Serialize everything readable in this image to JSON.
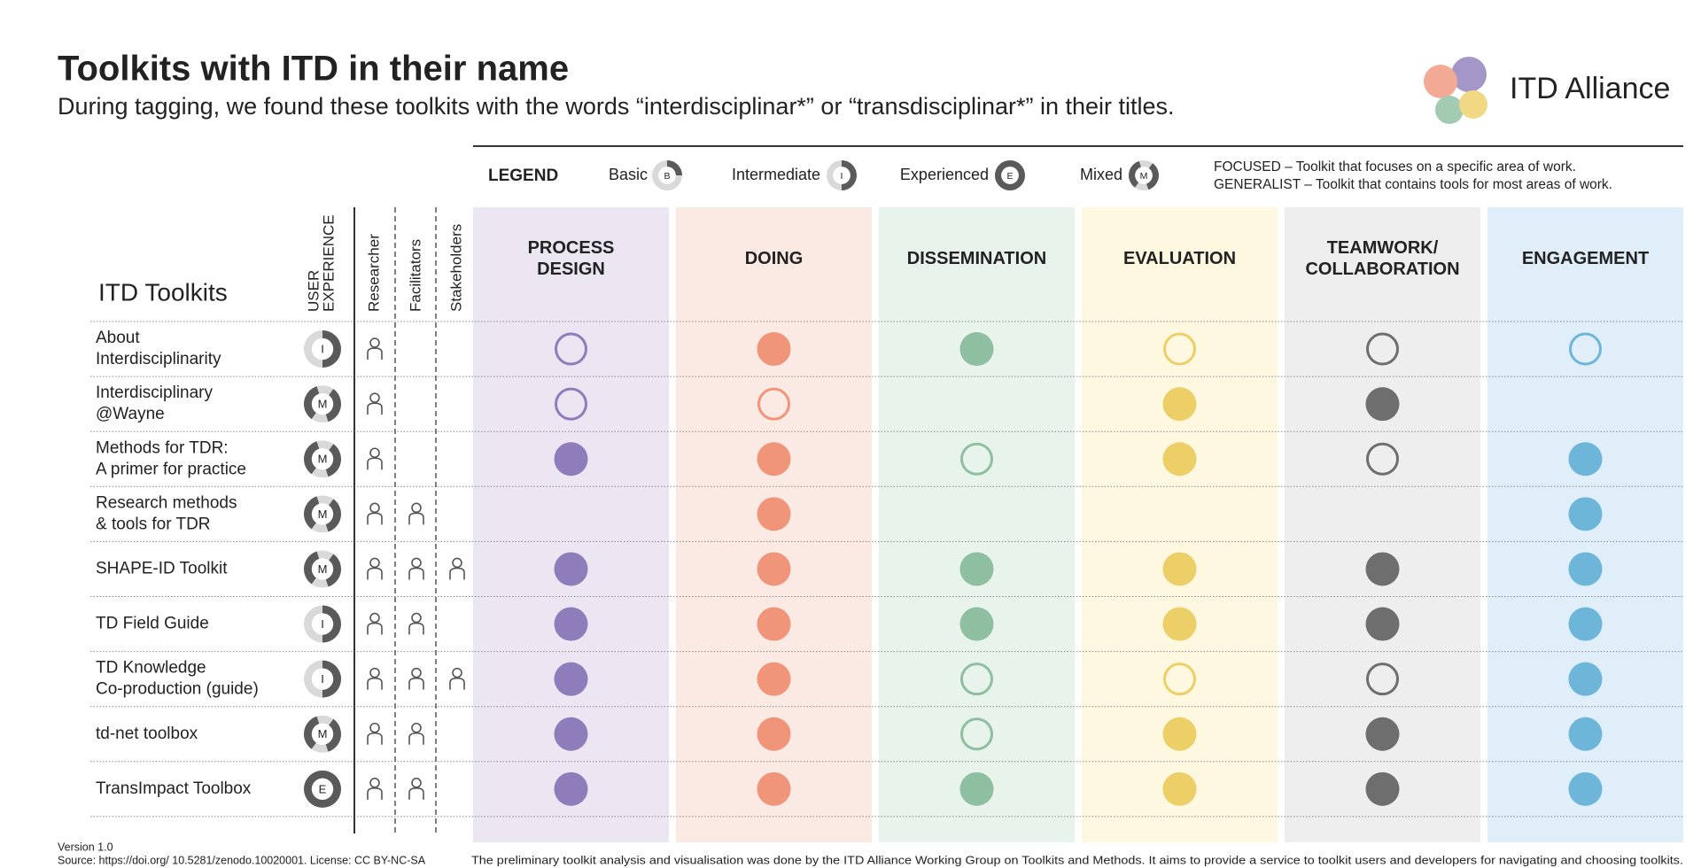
{
  "header": {
    "title": "Toolkits with ITD in their name",
    "subtitle": "During tagging, we found these toolkits with the words “interdisciplinar*” or “transdisciplinar*” in their titles.",
    "logo": "ITD Alliance"
  },
  "legend": {
    "title": "LEGEND",
    "levels": [
      {
        "label": "Basic",
        "letter": "B"
      },
      {
        "label": "Intermediate",
        "letter": "I"
      },
      {
        "label": "Experienced",
        "letter": "E"
      },
      {
        "label": "Mixed",
        "letter": "M"
      }
    ],
    "notes": [
      "FOCUSED – Toolkit that focuses on a specific area of work.",
      "GENERALIST – Toolkit that contains tools for most areas of work."
    ]
  },
  "table": {
    "title": "ITD Toolkits",
    "experience_header": [
      "USER",
      "EXPERIENCE"
    ],
    "roles": [
      "Researcher",
      "Facilitators",
      "Stakeholders"
    ],
    "areas": [
      {
        "name": [
          "PROCESS",
          "DESIGN"
        ],
        "color": "#8f7dbb",
        "background": "#ebe6f2"
      },
      {
        "name": [
          "DOING"
        ],
        "color": "#f0957a",
        "background": "#fbeae4"
      },
      {
        "name": [
          "DISSEMINATION"
        ],
        "color": "#8dbfa0",
        "background": "#e8f3ec"
      },
      {
        "name": [
          "EVALUATION"
        ],
        "color": "#edcf67",
        "background": "#fef8e0"
      },
      {
        "name": [
          "TEAMWORK/",
          "COLLABORATION"
        ],
        "color": "#6e6e6e",
        "background": "#eeeeee"
      },
      {
        "name": [
          "ENGAGEMENT"
        ],
        "color": "#6db6d9",
        "background": "#e0eefa"
      }
    ],
    "rows": [
      {
        "name": [
          "About",
          "Interdisciplinarity"
        ],
        "experience": "I",
        "roles": [
          true,
          false,
          false
        ],
        "cells": [
          "outline",
          "full",
          "full",
          "outline",
          "outline",
          "outline"
        ]
      },
      {
        "name": [
          "Interdisciplinary",
          "@Wayne"
        ],
        "experience": "M",
        "roles": [
          true,
          false,
          false
        ],
        "cells": [
          "outline",
          "outline",
          null,
          "full",
          "full",
          null
        ]
      },
      {
        "name": [
          "Methods for TDR:",
          "A primer for practice"
        ],
        "experience": "M",
        "roles": [
          true,
          false,
          false
        ],
        "cells": [
          "full",
          "full",
          "outline",
          "full",
          "outline",
          "full"
        ]
      },
      {
        "name": [
          "Research methods",
          "& tools for TDR"
        ],
        "experience": "M",
        "roles": [
          true,
          true,
          false
        ],
        "cells": [
          null,
          "full",
          null,
          null,
          null,
          "full"
        ]
      },
      {
        "name": [
          "SHAPE-ID Toolkit"
        ],
        "experience": "M",
        "roles": [
          true,
          true,
          true
        ],
        "cells": [
          "full",
          "full",
          "full",
          "full",
          "full",
          "full"
        ]
      },
      {
        "name": [
          "TD Field Guide"
        ],
        "experience": "I",
        "roles": [
          true,
          true,
          false
        ],
        "cells": [
          "full",
          "full",
          "full",
          "full",
          "full",
          "full"
        ]
      },
      {
        "name": [
          "TD Knowledge",
          "Co-production (guide)"
        ],
        "experience": "I",
        "roles": [
          true,
          true,
          true
        ],
        "cells": [
          "full",
          "full",
          "outline",
          "outline",
          "outline",
          "full"
        ]
      },
      {
        "name": [
          "td-net toolbox"
        ],
        "experience": "M",
        "roles": [
          true,
          true,
          false
        ],
        "cells": [
          "full",
          "full",
          "outline",
          "full",
          "full",
          "full"
        ]
      },
      {
        "name": [
          "TransImpact Toolbox"
        ],
        "experience": "E",
        "roles": [
          true,
          true,
          false
        ],
        "cells": [
          "full",
          "full",
          "full",
          "full",
          "full",
          "full"
        ]
      }
    ]
  },
  "footer": {
    "version": "Version 1.0",
    "source": "Source: https://doi.org/ 10.5281/zenodo.10020001. License: CC BY-NC-SA",
    "note": "The preliminary toolkit analysis and visualisation was done by the ITD Alliance Working Group on Toolkits and Methods. It aims to provide a service to toolkit users and developers for navigating and choosing toolkits."
  }
}
